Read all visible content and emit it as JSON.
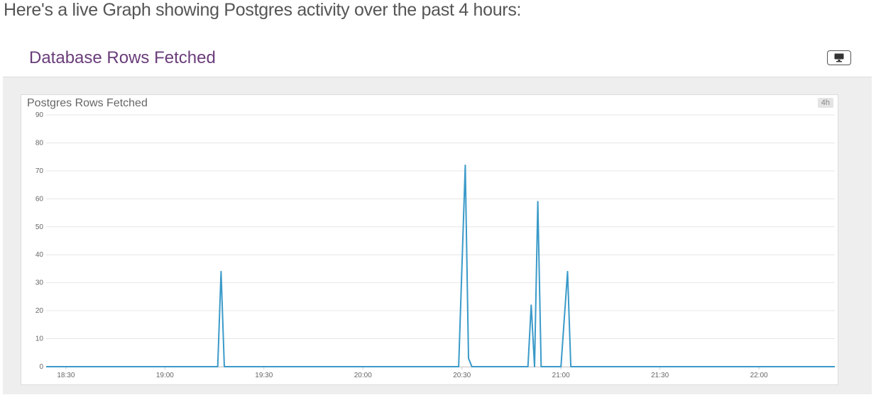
{
  "intro_text": "Here's a live Graph showing Postgres activity over the past 4 hours:",
  "panel": {
    "title": "Database Rows Fetched",
    "display_button_icon": "monitor-icon"
  },
  "chart_data": {
    "type": "line",
    "title": "Postgres Rows Fetched",
    "timespan_badge": "4h",
    "xlabel": "",
    "ylabel": "",
    "x_ticks": [
      "18:30",
      "19:00",
      "19:30",
      "20:00",
      "20:30",
      "21:00",
      "21:30",
      "22:00"
    ],
    "y_ticks": [
      0,
      10,
      20,
      30,
      40,
      50,
      60,
      70,
      80,
      90
    ],
    "xlim": [
      "18:24",
      "22:23"
    ],
    "ylim": [
      0,
      90
    ],
    "grid": "horizontal",
    "line_color": "#3a9ac9",
    "series": [
      {
        "name": "",
        "points": [
          [
            "18:24",
            0
          ],
          [
            "19:16",
            0
          ],
          [
            "19:17",
            34
          ],
          [
            "19:18",
            0
          ],
          [
            "20:29",
            0
          ],
          [
            "20:31",
            72
          ],
          [
            "20:32",
            3
          ],
          [
            "20:33",
            0
          ],
          [
            "20:50",
            0
          ],
          [
            "20:51",
            22
          ],
          [
            "20:52",
            0
          ],
          [
            "20:53",
            59
          ],
          [
            "20:54",
            0
          ],
          [
            "21:00",
            0
          ],
          [
            "21:02",
            34
          ],
          [
            "21:03",
            0
          ],
          [
            "22:23",
            0
          ]
        ]
      }
    ]
  }
}
